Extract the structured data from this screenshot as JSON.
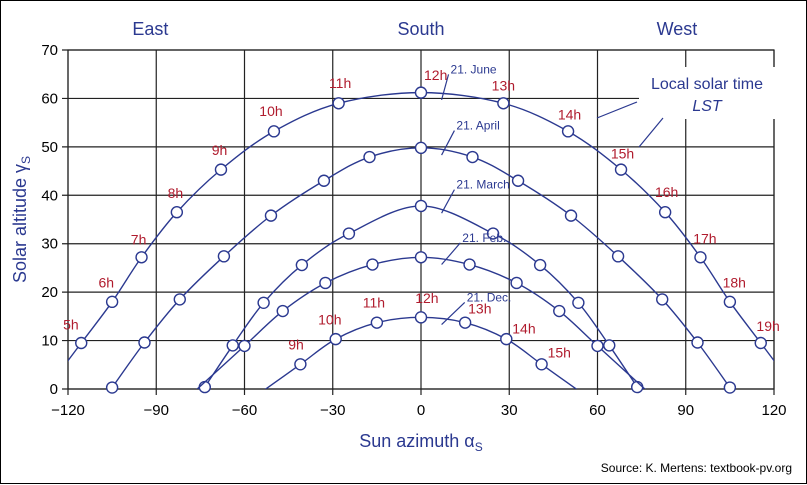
{
  "chart_data": {
    "type": "line",
    "xlabel": "Sun azimuth α",
    "xlabel_sub": "S",
    "ylabel": "Solar altitude γ",
    "ylabel_sub": "S",
    "xlim": [
      -120,
      120
    ],
    "ylim": [
      0,
      70
    ],
    "xticks": [
      -120,
      -90,
      -60,
      -30,
      0,
      30,
      60,
      90,
      120
    ],
    "xtick_labels": [
      "−120",
      "−90",
      "−60",
      "−30",
      "0",
      "30",
      "60",
      "90",
      "120"
    ],
    "yticks": [
      0,
      10,
      20,
      30,
      40,
      50,
      60,
      70
    ],
    "ytick_labels": [
      "0",
      "10",
      "20",
      "30",
      "40",
      "50",
      "60",
      "70"
    ],
    "grid": true,
    "direction_labels": [
      {
        "text": "East",
        "x": -92
      },
      {
        "text": "South",
        "x": 0
      },
      {
        "text": "West",
        "x": 87
      }
    ],
    "colors": {
      "curve": "#2b3990",
      "hour_label": "#b01c2e",
      "axis_text": "#2b3990",
      "grid": "#222222",
      "marker_fill": "#ffffff"
    },
    "series": [
      {
        "name": "21. June",
        "label_at": [
          8,
          66
        ],
        "points": [
          [
            -115.5,
            9.5
          ],
          [
            -105,
            18
          ],
          [
            -95,
            27.2
          ],
          [
            -83,
            36.5
          ],
          [
            -68,
            45.3
          ],
          [
            -50,
            53.2
          ],
          [
            -28,
            59
          ],
          [
            0,
            61.2
          ],
          [
            28,
            59
          ],
          [
            50,
            53.2
          ],
          [
            68,
            45.3
          ],
          [
            83,
            36.5
          ],
          [
            95,
            27.2
          ],
          [
            105,
            18
          ],
          [
            115.5,
            9.5
          ]
        ],
        "hour_labels": [
          {
            "text": "5h",
            "at": [
              -119,
              12.3
            ]
          },
          {
            "text": "6h",
            "at": [
              -107,
              21
            ]
          },
          {
            "text": "7h",
            "at": [
              -96,
              29.8
            ]
          },
          {
            "text": "8h",
            "at": [
              -83.5,
              39.4
            ]
          },
          {
            "text": "9h",
            "at": [
              -68.5,
              48.3
            ]
          },
          {
            "text": "10h",
            "at": [
              -51,
              56.4
            ]
          },
          {
            "text": "11h",
            "at": [
              -27.5,
              62.2
            ]
          },
          {
            "text": "12h",
            "at": [
              5,
              63.8
            ]
          },
          {
            "text": "13h",
            "at": [
              28,
              61.6
            ]
          },
          {
            "text": "14h",
            "at": [
              50.5,
              55.6
            ]
          },
          {
            "text": "15h",
            "at": [
              68.5,
              47.6
            ]
          },
          {
            "text": "16h",
            "at": [
              83.5,
              39.6
            ]
          },
          {
            "text": "17h",
            "at": [
              96.5,
              30
            ]
          },
          {
            "text": "18h",
            "at": [
              106.5,
              21
            ]
          },
          {
            "text": "19h",
            "at": [
              118,
              12
            ]
          }
        ]
      },
      {
        "name": "21. April",
        "label_at": [
          10,
          54.4
        ],
        "points": [
          [
            -105,
            0.3
          ],
          [
            -94,
            9.6
          ],
          [
            -82,
            18.5
          ],
          [
            -67,
            27.4
          ],
          [
            -51,
            35.8
          ],
          [
            -33,
            43
          ],
          [
            -17.5,
            47.9
          ],
          [
            0,
            49.8
          ],
          [
            17.5,
            47.9
          ],
          [
            33,
            43
          ],
          [
            51,
            35.8
          ],
          [
            67,
            27.4
          ],
          [
            82,
            18.5
          ],
          [
            94,
            9.6
          ],
          [
            105,
            0.3
          ]
        ],
        "hour_labels": []
      },
      {
        "name": "21. March",
        "label_at": [
          10,
          42.2
        ],
        "points": [
          [
            -73.5,
            0.4
          ],
          [
            -64,
            9
          ],
          [
            -53.5,
            17.8
          ],
          [
            -40.5,
            25.6
          ],
          [
            -24.5,
            32.1
          ],
          [
            0,
            37.8
          ],
          [
            24.5,
            32.1
          ],
          [
            40.5,
            25.6
          ],
          [
            53.5,
            17.8
          ],
          [
            64,
            9
          ],
          [
            73.5,
            0.4
          ]
        ],
        "hour_labels": []
      },
      {
        "name": "21. Feb.",
        "label_at": [
          12,
          31.2
        ],
        "points": [
          [
            -60,
            8.9
          ],
          [
            -47,
            16.1
          ],
          [
            -32.5,
            21.9
          ],
          [
            -16.5,
            25.7
          ],
          [
            0,
            27.2
          ],
          [
            16.5,
            25.7
          ],
          [
            32.5,
            21.9
          ],
          [
            47,
            16.1
          ],
          [
            60,
            8.9
          ]
        ],
        "hour_labels": []
      },
      {
        "name": "21. Dec.",
        "label_at": [
          13.5,
          18.9
        ],
        "points": [
          [
            -41,
            5.1
          ],
          [
            -29,
            10.3
          ],
          [
            -15,
            13.7
          ],
          [
            0,
            14.8
          ],
          [
            15,
            13.7
          ],
          [
            29,
            10.3
          ],
          [
            41,
            5.1
          ]
        ],
        "hour_labels": [
          {
            "text": "9h",
            "at": [
              -42.5,
              8.2
            ]
          },
          {
            "text": "10h",
            "at": [
              -31,
              13.3
            ]
          },
          {
            "text": "11h",
            "at": [
              -16,
              16.8
            ]
          },
          {
            "text": "12h",
            "at": [
              2,
              17.8
            ]
          },
          {
            "text": "13h",
            "at": [
              20,
              15.6
            ]
          },
          {
            "text": "14h",
            "at": [
              35,
              11.5
            ]
          },
          {
            "text": "15h",
            "at": [
              47,
              6.5
            ]
          }
        ]
      }
    ],
    "annotation": {
      "line1": "Local solar time",
      "line2": "LST"
    }
  },
  "source": "Source: K. Mertens: textbook-pv.org"
}
